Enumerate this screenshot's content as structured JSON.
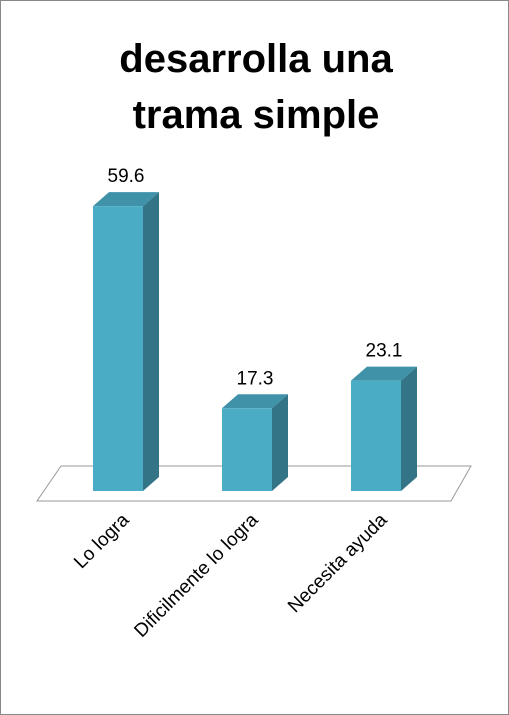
{
  "chart_data": {
    "type": "bar3d",
    "title": "desarrolla una trama simple",
    "categories": [
      "Lo logra",
      "Dificilmente lo logra",
      "Necesita ayuda"
    ],
    "values": [
      59.6,
      17.3,
      23.1
    ],
    "color": "#4bacc6"
  }
}
